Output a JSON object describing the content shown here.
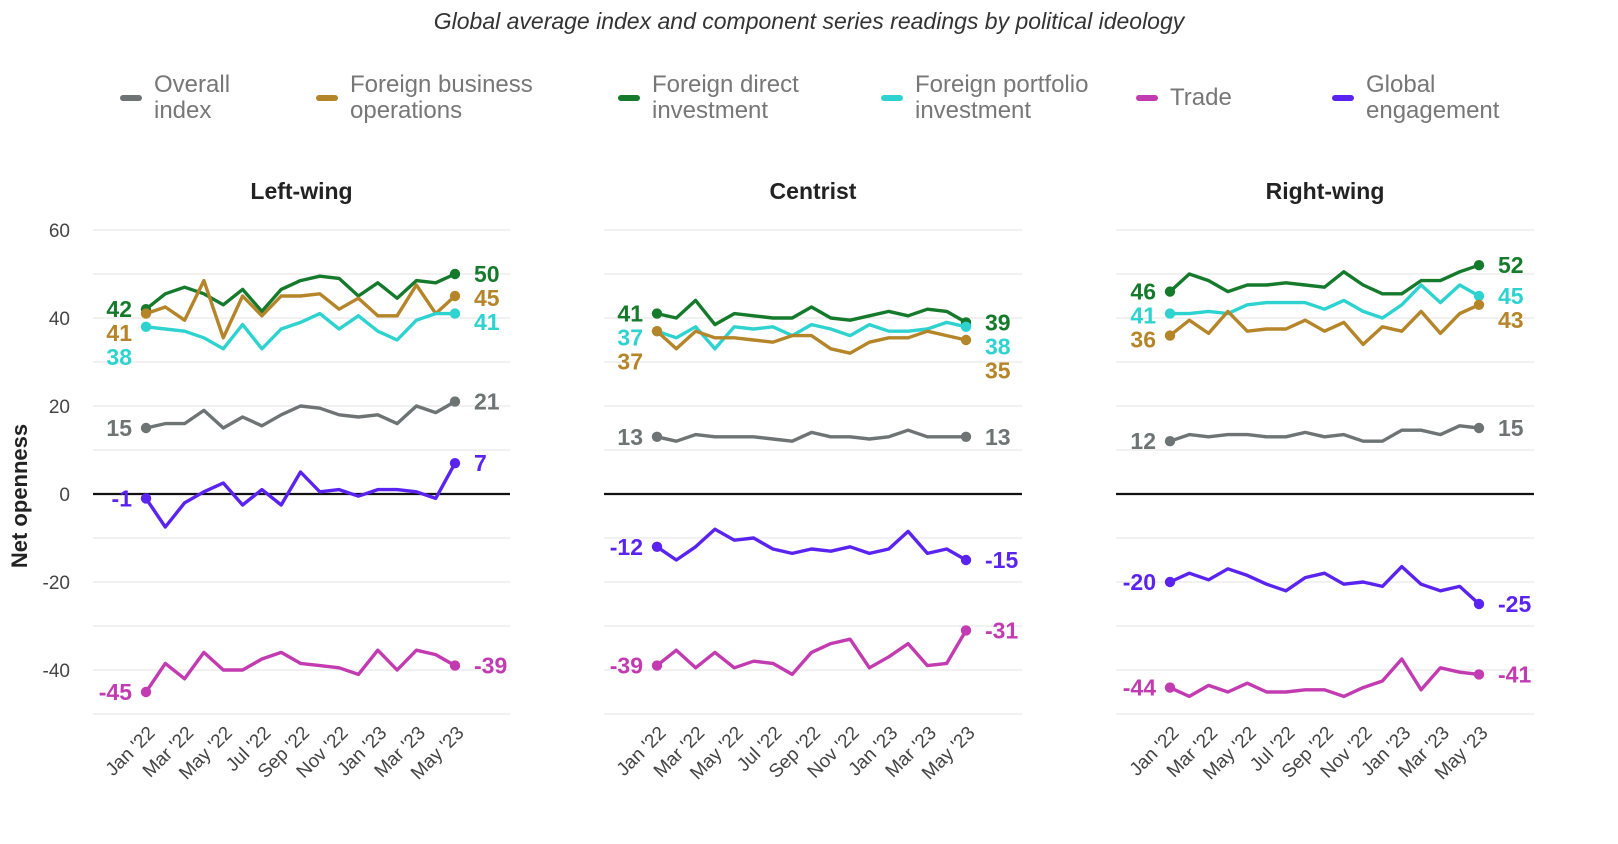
{
  "title": "Global average index and component series readings by political ideology",
  "ylabel": "Net openness",
  "legend": [
    {
      "key": "overall",
      "label": "Overall\nindex",
      "color": "#6e7373"
    },
    {
      "key": "fbo",
      "label": "Foreign business\noperations",
      "color": "#b5852a"
    },
    {
      "key": "fdi",
      "label": "Foreign direct\ninvestment",
      "color": "#157a2c"
    },
    {
      "key": "fpi",
      "label": "Foreign portfolio\ninvestment",
      "color": "#2ed3d0"
    },
    {
      "key": "trade",
      "label": "Trade",
      "color": "#c23bb0"
    },
    {
      "key": "global",
      "label": "Global\nengagement",
      "color": "#5a23f0"
    }
  ],
  "chart_data": [
    {
      "type": "line",
      "title": "Left-wing",
      "x": [
        "Jan '22",
        "Feb '22",
        "Mar '22",
        "Apr '22",
        "May '22",
        "Jun '22",
        "Jul '22",
        "Aug '22",
        "Sep '22",
        "Oct '22",
        "Nov '22",
        "Dec '22",
        "Jan '23",
        "Feb '23",
        "Mar '23",
        "Apr '23",
        "May '23"
      ],
      "xticks": [
        "Jan '22",
        "Mar '22",
        "May '22",
        "Jul '22",
        "Sep '22",
        "Nov '22",
        "Jan '23",
        "Mar '23",
        "May '23"
      ],
      "yticks": [
        60,
        40,
        20,
        0,
        -20,
        -40
      ],
      "ylim": [
        -50,
        60
      ],
      "series": [
        {
          "key": "fdi",
          "name": "Foreign direct investment",
          "values": [
            42,
            45.5,
            47,
            45.5,
            43,
            46.5,
            41.5,
            46.5,
            48.5,
            49.5,
            49,
            45,
            48,
            44.5,
            48.5,
            48,
            50
          ],
          "start": "42",
          "end": "50"
        },
        {
          "key": "fbo",
          "name": "Foreign business operations",
          "values": [
            41,
            42.5,
            39.5,
            48.5,
            35.5,
            45,
            40.5,
            45,
            45,
            45.5,
            42,
            44.5,
            40.5,
            40.5,
            47.5,
            41,
            45
          ],
          "start": "41",
          "end": "45"
        },
        {
          "key": "fpi",
          "name": "Foreign portfolio investment",
          "values": [
            38,
            37.5,
            37,
            35.5,
            33,
            38.5,
            33,
            37.5,
            39,
            41,
            37.5,
            40.5,
            37,
            35,
            39.5,
            41,
            41
          ],
          "start": "38",
          "end": "41"
        },
        {
          "key": "overall",
          "name": "Overall index",
          "values": [
            15,
            16,
            16,
            19,
            15,
            17.5,
            15.5,
            18,
            20,
            19.5,
            18,
            17.5,
            18,
            16,
            20,
            18.5,
            21
          ],
          "start": "15",
          "end": "21"
        },
        {
          "key": "global",
          "name": "Global engagement",
          "values": [
            -1,
            -7.5,
            -2,
            0.5,
            2.5,
            -2.5,
            1,
            -2.5,
            5,
            0.5,
            1,
            -0.5,
            1,
            1,
            0.5,
            -1,
            7
          ],
          "start": "-1",
          "end": "7"
        },
        {
          "key": "trade",
          "name": "Trade",
          "values": [
            -45,
            -38.5,
            -42,
            -36,
            -40,
            -40,
            -37.5,
            -36,
            -38.5,
            -39,
            -39.5,
            -41,
            -35.5,
            -40,
            -35.5,
            -36.5,
            -39
          ],
          "start": "-45",
          "end": "-39"
        }
      ]
    },
    {
      "type": "line",
      "title": "Centrist",
      "x": [
        "Jan '22",
        "Feb '22",
        "Mar '22",
        "Apr '22",
        "May '22",
        "Jun '22",
        "Jul '22",
        "Aug '22",
        "Sep '22",
        "Oct '22",
        "Nov '22",
        "Dec '22",
        "Jan '23",
        "Feb '23",
        "Mar '23",
        "Apr '23",
        "May '23"
      ],
      "xticks": [
        "Jan '22",
        "Mar '22",
        "May '22",
        "Jul '22",
        "Sep '22",
        "Nov '22",
        "Jan '23",
        "Mar '23",
        "May '23"
      ],
      "yticks": [
        60,
        40,
        20,
        0,
        -20,
        -40
      ],
      "ylim": [
        -50,
        60
      ],
      "series": [
        {
          "key": "fdi",
          "name": "Foreign direct investment",
          "values": [
            41,
            40,
            44,
            38.5,
            41,
            40.5,
            40,
            40,
            42.5,
            40,
            39.5,
            40.5,
            41.5,
            40.5,
            42,
            41.5,
            39
          ],
          "start": "41",
          "end": "39"
        },
        {
          "key": "fpi",
          "name": "Foreign portfolio investment",
          "values": [
            37,
            35.5,
            38,
            33,
            38,
            37.5,
            38,
            36,
            38.5,
            37.5,
            36,
            38.5,
            37,
            37,
            37.5,
            39,
            38
          ],
          "start": "37",
          "end": "38"
        },
        {
          "key": "fbo",
          "name": "Foreign business operations",
          "values": [
            37,
            33,
            37,
            35.5,
            35.5,
            35,
            34.5,
            36,
            36,
            33,
            32,
            34.5,
            35.5,
            35.5,
            37,
            36,
            35
          ],
          "start": "37",
          "end": "35"
        },
        {
          "key": "overall",
          "name": "Overall index",
          "values": [
            13,
            12,
            13.5,
            13,
            13,
            13,
            12.5,
            12,
            14,
            13,
            13,
            12.5,
            13,
            14.5,
            13,
            13,
            13
          ],
          "start": "13",
          "end": "13"
        },
        {
          "key": "global",
          "name": "Global engagement",
          "values": [
            -12,
            -15,
            -12,
            -8,
            -10.5,
            -10,
            -12.5,
            -13.5,
            -12.5,
            -13,
            -12,
            -13.5,
            -12.5,
            -8.5,
            -13.5,
            -12.5,
            -15
          ],
          "start": "-12",
          "end": "-15"
        },
        {
          "key": "trade",
          "name": "Trade",
          "values": [
            -39,
            -35.5,
            -39.5,
            -36,
            -39.5,
            -38,
            -38.5,
            -41,
            -36,
            -34,
            -33,
            -39.5,
            -37,
            -34,
            -39,
            -38.5,
            -31
          ],
          "start": "-39",
          "end": "-31"
        }
      ]
    },
    {
      "type": "line",
      "title": "Right-wing",
      "x": [
        "Jan '22",
        "Feb '22",
        "Mar '22",
        "Apr '22",
        "May '22",
        "Jun '22",
        "Jul '22",
        "Aug '22",
        "Sep '22",
        "Oct '22",
        "Nov '22",
        "Dec '22",
        "Jan '23",
        "Feb '23",
        "Mar '23",
        "Apr '23",
        "May '23"
      ],
      "xticks": [
        "Jan '22",
        "Mar '22",
        "May '22",
        "Jul '22",
        "Sep '22",
        "Nov '22",
        "Jan '23",
        "Mar '23",
        "May '23"
      ],
      "yticks": [
        60,
        40,
        20,
        0,
        -20,
        -40
      ],
      "ylim": [
        -50,
        60
      ],
      "series": [
        {
          "key": "fdi",
          "name": "Foreign direct investment",
          "values": [
            46,
            50,
            48.5,
            46,
            47.5,
            47.5,
            48,
            47.5,
            47,
            50.5,
            47.5,
            45.5,
            45.5,
            48.5,
            48.5,
            50.5,
            52
          ],
          "start": "46",
          "end": "52"
        },
        {
          "key": "fpi",
          "name": "Foreign portfolio investment",
          "values": [
            41,
            41,
            41.5,
            41,
            43,
            43.5,
            43.5,
            43.5,
            42,
            44,
            41.5,
            40,
            43,
            47.5,
            43.5,
            47.5,
            45
          ],
          "start": "41",
          "end": "45"
        },
        {
          "key": "fbo",
          "name": "Foreign business operations",
          "values": [
            36,
            39.5,
            36.5,
            41.5,
            37,
            37.5,
            37.5,
            39.5,
            37,
            39,
            34,
            38,
            37,
            41.5,
            36.5,
            41,
            43
          ],
          "start": "36",
          "end": "43"
        },
        {
          "key": "overall",
          "name": "Overall index",
          "values": [
            12,
            13.5,
            13,
            13.5,
            13.5,
            13,
            13,
            14,
            13,
            13.5,
            12,
            12,
            14.5,
            14.5,
            13.5,
            15.5,
            15
          ],
          "start": "12",
          "end": "15"
        },
        {
          "key": "global",
          "name": "Global engagement",
          "values": [
            -20,
            -18,
            -19.5,
            -17,
            -18.5,
            -20.5,
            -22,
            -19,
            -18,
            -20.5,
            -20,
            -21,
            -16.5,
            -20.5,
            -22,
            -21,
            -25
          ],
          "start": "-20",
          "end": "-25"
        },
        {
          "key": "trade",
          "name": "Trade",
          "values": [
            -44,
            -46,
            -43.5,
            -45,
            -43,
            -45,
            -45,
            -44.5,
            -44.5,
            -46,
            -44,
            -42.5,
            -37.5,
            -44.5,
            -39.5,
            -40.5,
            -41
          ],
          "start": "-44",
          "end": "-41"
        }
      ]
    }
  ]
}
